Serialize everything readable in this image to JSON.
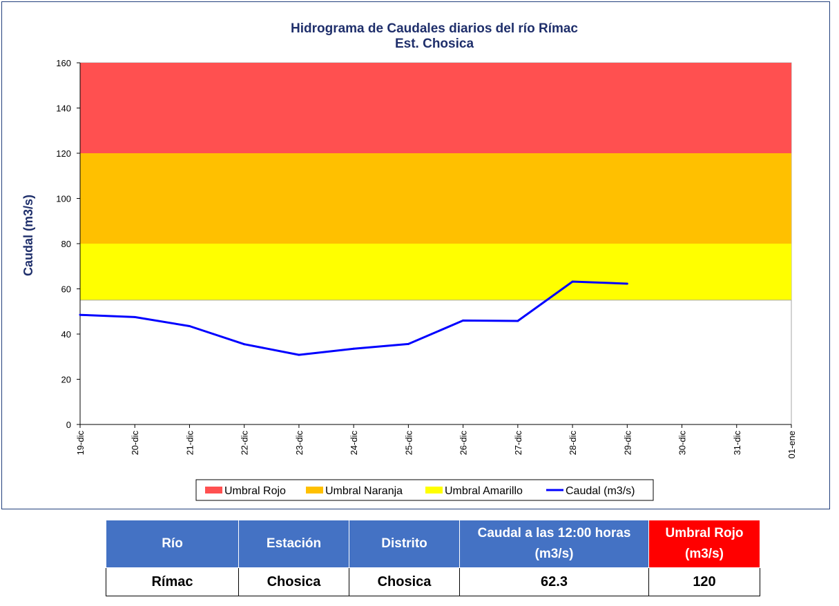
{
  "chart_data": {
    "type": "line",
    "title": "Hidrograma  de Caudales diarios del río Rímac",
    "subtitle": "Est. Chosica",
    "ylabel": "Caudal (m3/s)",
    "xlabel": "",
    "ylim": [
      0,
      160
    ],
    "yticks": [
      0,
      20,
      40,
      60,
      80,
      100,
      120,
      140,
      160
    ],
    "categories": [
      "19-dic",
      "20-dic",
      "21-dic",
      "22-dic",
      "23-dic",
      "24-dic",
      "25-dic",
      "26-dic",
      "27-dic",
      "28-dic",
      "29-dic",
      "30-dic",
      "31-dic",
      "01-ene"
    ],
    "bands": [
      {
        "name": "Umbral Rojo",
        "from": 120,
        "to": 160,
        "color": "#ff5050"
      },
      {
        "name": "Umbral Naranja",
        "from": 80,
        "to": 120,
        "color": "#ffc000"
      },
      {
        "name": "Umbral Amarillo",
        "from": 55,
        "to": 80,
        "color": "#ffff00"
      }
    ],
    "series": [
      {
        "name": "Caudal (m3/s)",
        "color": "#0000ff",
        "values": [
          48.5,
          47.5,
          43.5,
          35.5,
          30.8,
          33.5,
          35.6,
          46.0,
          45.8,
          63.2,
          62.3,
          null,
          null,
          null
        ]
      }
    ],
    "grid": false,
    "legend_position": "bottom"
  },
  "table": {
    "headers": [
      {
        "line1": "Río",
        "line2": ""
      },
      {
        "line1": "Estación",
        "line2": ""
      },
      {
        "line1": "Distrito",
        "line2": ""
      },
      {
        "line1": "Caudal a  las 12:00 horas",
        "line2": "(m3/s)"
      },
      {
        "line1": "Umbral  Rojo",
        "line2": "(m3/s)"
      }
    ],
    "row": [
      "Rímac",
      "Chosica",
      "Chosica",
      "62.3",
      "120"
    ]
  }
}
